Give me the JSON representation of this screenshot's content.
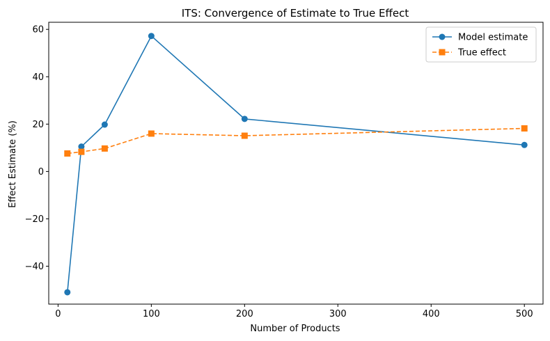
{
  "chart_data": {
    "type": "line",
    "title": "ITS: Convergence of Estimate to True Effect",
    "xlabel": "Number of Products",
    "ylabel": "Effect Estimate (%)",
    "xlim": [
      -10,
      520
    ],
    "ylim": [
      -56,
      63
    ],
    "xticks": [
      0,
      100,
      200,
      300,
      400,
      500
    ],
    "xtick_labels": [
      "0",
      "100",
      "200",
      "300",
      "400",
      "500"
    ],
    "yticks": [
      -40,
      -20,
      0,
      20,
      40,
      60
    ],
    "ytick_labels": [
      "−40",
      "−20",
      "0",
      "20",
      "40",
      "60"
    ],
    "grid": false,
    "legend_position": "top-right",
    "x": [
      10,
      25,
      50,
      100,
      200,
      500
    ],
    "series": [
      {
        "name": "Model estimate",
        "values": [
          -51.0,
          10.5,
          19.8,
          57.2,
          22.2,
          11.2
        ],
        "color": "#1f77b4",
        "marker": "circle",
        "linestyle": "solid"
      },
      {
        "name": "True effect",
        "values": [
          7.6,
          8.3,
          9.7,
          16.0,
          15.1,
          18.2
        ],
        "color": "#ff7f0e",
        "marker": "square",
        "linestyle": "dashed"
      }
    ]
  }
}
